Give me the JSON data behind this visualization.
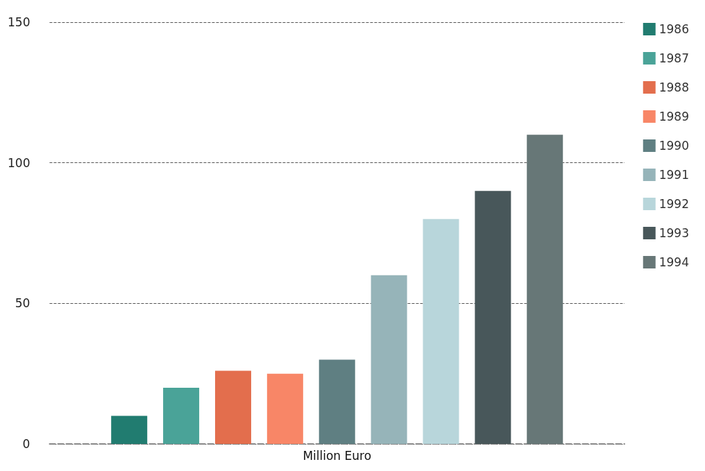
{
  "chart_data": {
    "type": "bar",
    "categories": [
      "Million Euro"
    ],
    "series": [
      {
        "name": "1986",
        "color": "#217c70",
        "values": [
          10
        ]
      },
      {
        "name": "1987",
        "color": "#4aa398",
        "values": [
          20
        ]
      },
      {
        "name": "1988",
        "color": "#e36e4d",
        "values": [
          26
        ]
      },
      {
        "name": "1989",
        "color": "#f88667",
        "values": [
          25
        ]
      },
      {
        "name": "1990",
        "color": "#5f7f82",
        "values": [
          30
        ]
      },
      {
        "name": "1991",
        "color": "#96b4b9",
        "values": [
          60
        ]
      },
      {
        "name": "1992",
        "color": "#b8d6db",
        "values": [
          80
        ]
      },
      {
        "name": "1993",
        "color": "#48575a",
        "values": [
          90
        ]
      },
      {
        "name": "1994",
        "color": "#677777",
        "values": [
          110
        ]
      }
    ],
    "ylim": [
      0,
      150
    ],
    "yticks": [
      0,
      50,
      100,
      150
    ],
    "grid": "y",
    "legend": "right"
  }
}
